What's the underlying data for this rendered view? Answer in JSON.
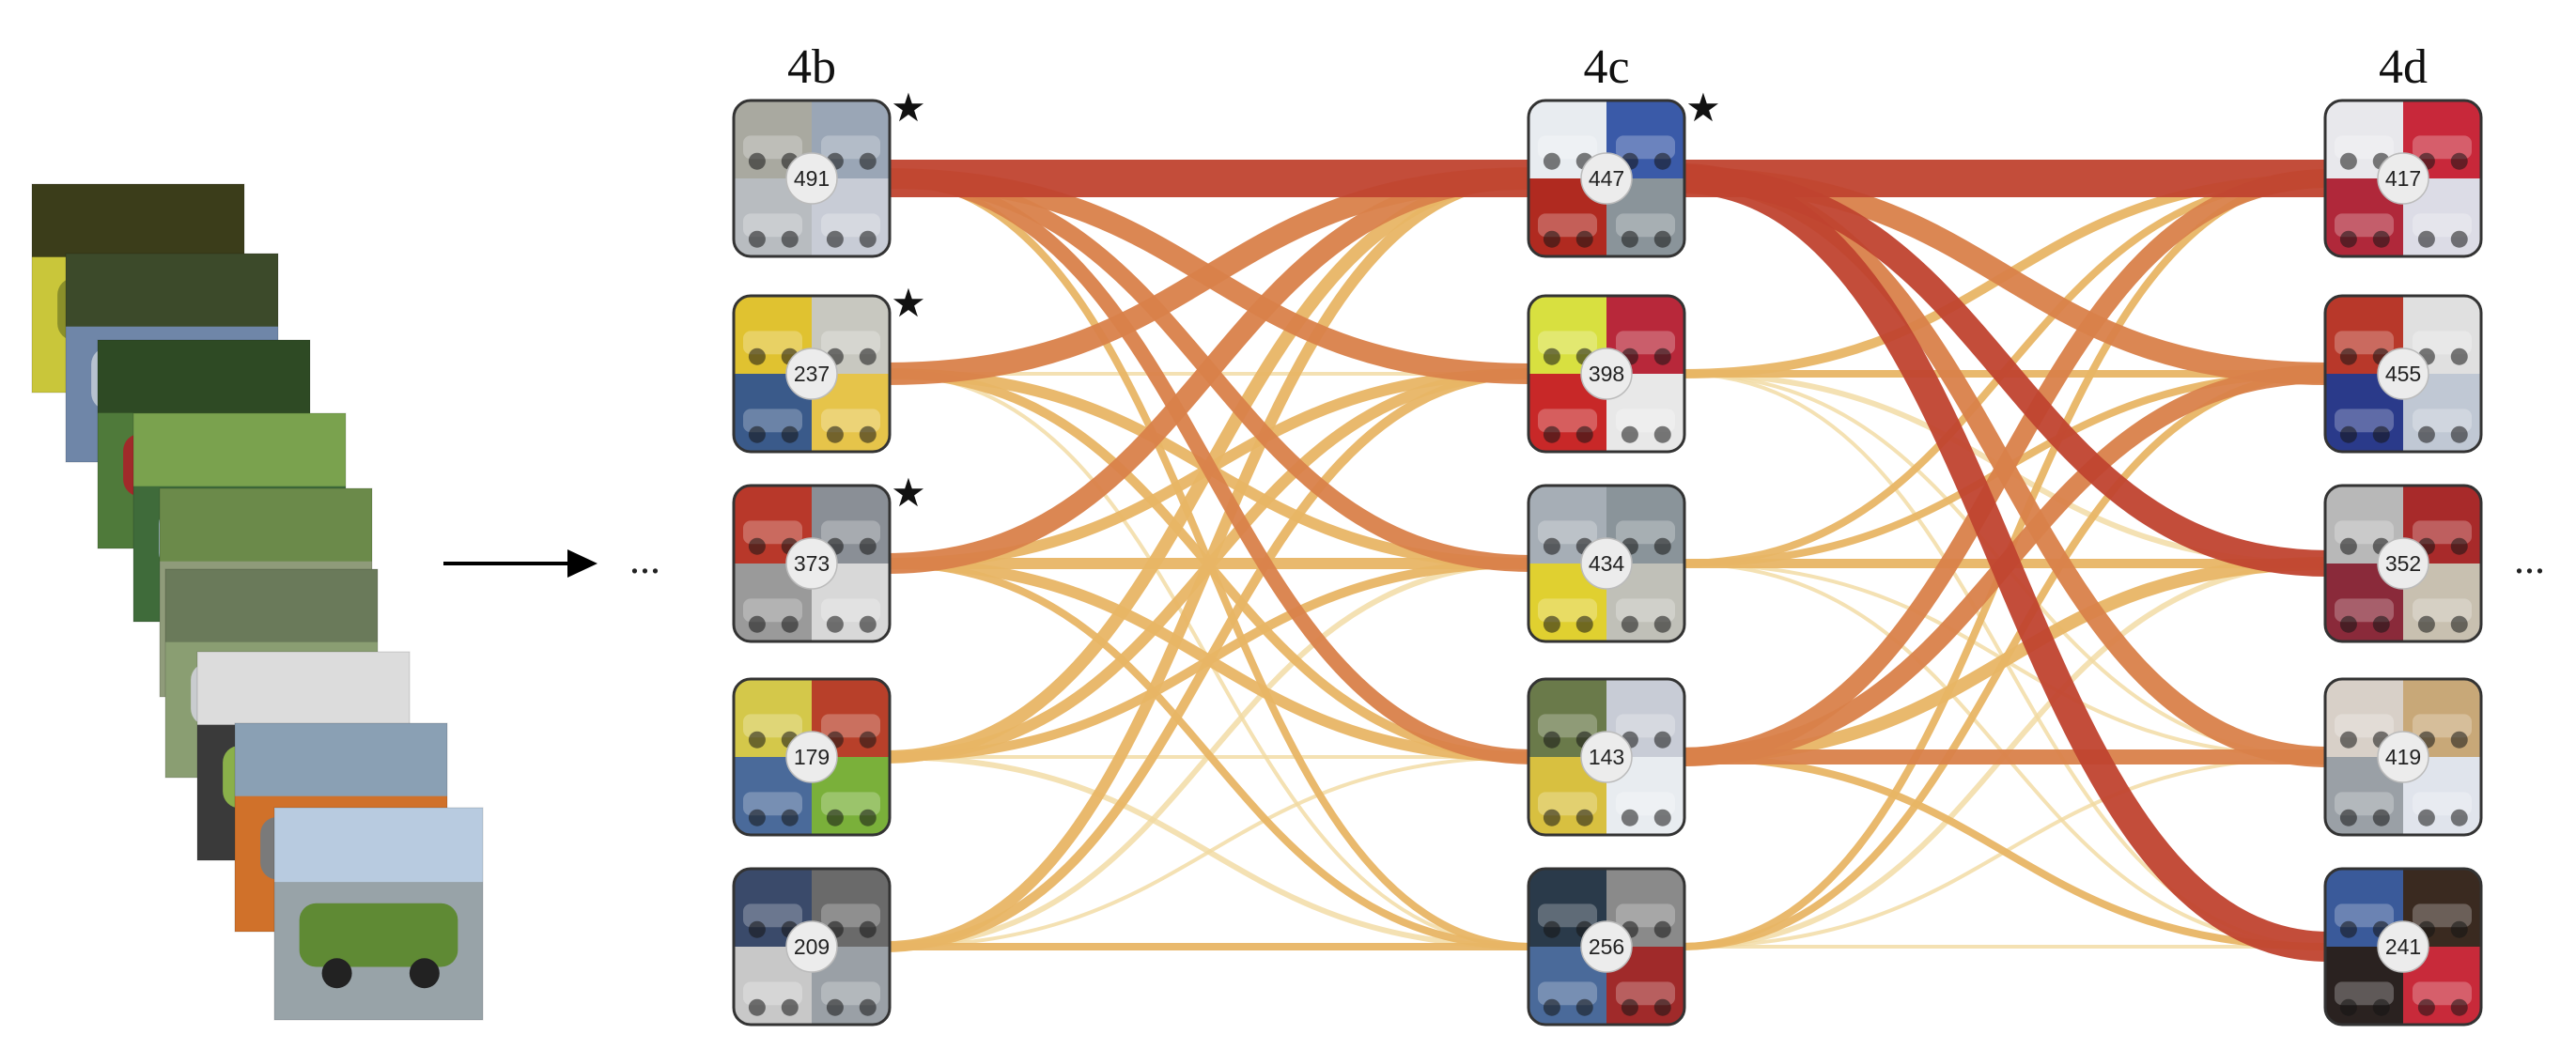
{
  "layers": [
    {
      "label": "4b",
      "star_nodes": [
        "491",
        "237",
        "373"
      ],
      "nodes": [
        "491",
        "237",
        "373",
        "179",
        "209"
      ]
    },
    {
      "label": "4c",
      "star_nodes": [
        "447"
      ],
      "nodes": [
        "447",
        "398",
        "434",
        "143",
        "256"
      ]
    },
    {
      "label": "4d",
      "star_nodes": [],
      "nodes": [
        "417",
        "455",
        "352",
        "419",
        "241"
      ]
    }
  ],
  "ellipsis_left": "...",
  "ellipsis_right": "...",
  "star_symbol": "★",
  "edges_4b_4c": [
    {
      "from": 0,
      "to": 0,
      "w": 1.0
    },
    {
      "from": 0,
      "to": 1,
      "w": 0.55
    },
    {
      "from": 0,
      "to": 2,
      "w": 0.45
    },
    {
      "from": 0,
      "to": 3,
      "w": 0.4
    },
    {
      "from": 0,
      "to": 4,
      "w": 0.2
    },
    {
      "from": 1,
      "to": 0,
      "w": 0.6
    },
    {
      "from": 1,
      "to": 1,
      "w": 0.1
    },
    {
      "from": 1,
      "to": 2,
      "w": 0.3
    },
    {
      "from": 1,
      "to": 3,
      "w": 0.25
    },
    {
      "from": 1,
      "to": 4,
      "w": 0.1
    },
    {
      "from": 2,
      "to": 0,
      "w": 0.55
    },
    {
      "from": 2,
      "to": 1,
      "w": 0.3
    },
    {
      "from": 2,
      "to": 2,
      "w": 0.3
    },
    {
      "from": 2,
      "to": 3,
      "w": 0.3
    },
    {
      "from": 2,
      "to": 4,
      "w": 0.2
    },
    {
      "from": 3,
      "to": 0,
      "w": 0.35
    },
    {
      "from": 3,
      "to": 1,
      "w": 0.3
    },
    {
      "from": 3,
      "to": 2,
      "w": 0.25
    },
    {
      "from": 3,
      "to": 3,
      "w": 0.1
    },
    {
      "from": 3,
      "to": 4,
      "w": 0.15
    },
    {
      "from": 4,
      "to": 0,
      "w": 0.3
    },
    {
      "from": 4,
      "to": 1,
      "w": 0.25
    },
    {
      "from": 4,
      "to": 2,
      "w": 0.15
    },
    {
      "from": 4,
      "to": 3,
      "w": 0.1
    },
    {
      "from": 4,
      "to": 4,
      "w": 0.2
    }
  ],
  "edges_4c_4d": [
    {
      "from": 0,
      "to": 0,
      "w": 1.0
    },
    {
      "from": 0,
      "to": 1,
      "w": 0.6
    },
    {
      "from": 0,
      "to": 2,
      "w": 0.7
    },
    {
      "from": 0,
      "to": 3,
      "w": 0.55
    },
    {
      "from": 0,
      "to": 4,
      "w": 0.8
    },
    {
      "from": 1,
      "to": 0,
      "w": 0.25
    },
    {
      "from": 1,
      "to": 1,
      "w": 0.2
    },
    {
      "from": 1,
      "to": 2,
      "w": 0.15
    },
    {
      "from": 1,
      "to": 3,
      "w": 0.1
    },
    {
      "from": 1,
      "to": 4,
      "w": 0.1
    },
    {
      "from": 2,
      "to": 0,
      "w": 0.2
    },
    {
      "from": 2,
      "to": 1,
      "w": 0.2
    },
    {
      "from": 2,
      "to": 2,
      "w": 0.25
    },
    {
      "from": 2,
      "to": 3,
      "w": 0.1
    },
    {
      "from": 2,
      "to": 4,
      "w": 0.1
    },
    {
      "from": 3,
      "to": 0,
      "w": 0.5
    },
    {
      "from": 3,
      "to": 1,
      "w": 0.5
    },
    {
      "from": 3,
      "to": 2,
      "w": 0.35
    },
    {
      "from": 3,
      "to": 3,
      "w": 0.4
    },
    {
      "from": 3,
      "to": 4,
      "w": 0.2
    },
    {
      "from": 4,
      "to": 0,
      "w": 0.2
    },
    {
      "from": 4,
      "to": 1,
      "w": 0.2
    },
    {
      "from": 4,
      "to": 2,
      "w": 0.15
    },
    {
      "from": 4,
      "to": 3,
      "w": 0.1
    },
    {
      "from": 4,
      "to": 4,
      "w": 0.1
    }
  ],
  "colors": {
    "strong": "#c0432f",
    "medium": "#d9814a",
    "light": "#e8b565",
    "faint": "#f1d9a0",
    "badge_fill": "#ececec",
    "arrow": "#000000"
  },
  "image_stack": [
    {
      "desc": "yellow-car",
      "colors": [
        "#c9c63a",
        "#8a8f2a",
        "#3b3d1a"
      ]
    },
    {
      "desc": "blue-convertible",
      "colors": [
        "#6f86a8",
        "#b7c2cf",
        "#3c4a2a"
      ]
    },
    {
      "desc": "red-car-garden",
      "colors": [
        "#4f7a3a",
        "#a02a2a",
        "#2e4a24"
      ]
    },
    {
      "desc": "landscape-field",
      "colors": [
        "#3f6b3a",
        "#9fb7c9",
        "#7aa24e"
      ]
    },
    {
      "desc": "picnic-shelter",
      "colors": [
        "#8f9b7a",
        "#c8d0c0",
        "#6b8a4a"
      ]
    },
    {
      "desc": "silver-car-road",
      "colors": [
        "#8a9e72",
        "#c9cccf",
        "#6a7a5a"
      ]
    },
    {
      "desc": "motorcyclists",
      "colors": [
        "#3a3a3a",
        "#8ab04a",
        "#dcdcdc"
      ]
    },
    {
      "desc": "orange-car",
      "colors": [
        "#d0712a",
        "#7a7a7a",
        "#8aa0b4"
      ]
    },
    {
      "desc": "chevy-truck",
      "colors": [
        "#98a3a8",
        "#5f8a34",
        "#b8cbe0"
      ]
    }
  ],
  "node_tiles": {
    "491": [
      "#a9a9a0",
      "#9aa6b6",
      "#b8bcc0",
      "#c8ccd6"
    ],
    "237": [
      "#e0c230",
      "#c8c8c0",
      "#3a5a8a",
      "#e6c44a"
    ],
    "373": [
      "#b8382a",
      "#8a8f96",
      "#9a9a9a",
      "#d8d8d8"
    ],
    "179": [
      "#d4c84a",
      "#b8402a",
      "#4a6a9a",
      "#7ab03a"
    ],
    "209": [
      "#3a4a6a",
      "#6a6a6a",
      "#c8c8c8",
      "#9aa0a6"
    ],
    "447": [
      "#e8ecf0",
      "#3a5aa8",
      "#b02a20",
      "#8a949a"
    ],
    "398": [
      "#d8e040",
      "#b8283a",
      "#c82828",
      "#e8e8e8"
    ],
    "434": [
      "#a6aeb6",
      "#8a949a",
      "#e0d030",
      "#c0c0b8"
    ],
    "143": [
      "#6a7a4a",
      "#c8ccd6",
      "#d8c040",
      "#e8ecf0"
    ],
    "256": [
      "#2a3a4a",
      "#8a8a8a",
      "#4a6a9a",
      "#a02a2a"
    ],
    "417": [
      "#e8e8ec",
      "#c8283a",
      "#b0283a",
      "#dcdce6"
    ],
    "455": [
      "#b8382a",
      "#e0e0e0",
      "#2a3a8a",
      "#c0c8d4"
    ],
    "352": [
      "#b8b8b8",
      "#a82a2a",
      "#8a2a3a",
      "#c8c0b0"
    ],
    "419": [
      "#d8d0c8",
      "#c8a878",
      "#9aa0a6",
      "#e0e4ec"
    ],
    "241": [
      "#3a5a9a",
      "#3a2a20",
      "#2a2220",
      "#c82a3a"
    ]
  }
}
